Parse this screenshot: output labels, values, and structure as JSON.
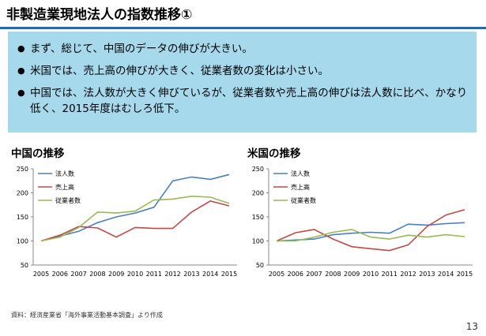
{
  "slide": {
    "title": "非製造業現地法人の指数推移①",
    "page_number": "13",
    "source": "資料：経済産業省「海外事業活動基本調査」より作成"
  },
  "summary": {
    "bullets": [
      "まず、総じて、中国のデータの伸びが大きい。",
      "米国では、売上高の伸びが大きく、従業者数の変化は小さい。",
      "中国では、法人数が大きく伸びているが、従業者数や売上高の伸びは法人数に比べ、かなり低く、2015年度はむしろ低下。"
    ]
  },
  "colors": {
    "title_rule": "#1f6bb3",
    "box_bg": "#a6d9ec",
    "series_1": "#4a7ebb",
    "series_2": "#be4b48",
    "series_3": "#98b954"
  },
  "chart_data": [
    {
      "type": "line",
      "title": "中国の推移",
      "x": [
        "2005",
        "2006",
        "2007",
        "2008",
        "2009",
        "2010",
        "2011",
        "2012",
        "2013",
        "2014",
        "2015"
      ],
      "ylim": [
        50,
        250
      ],
      "yticks": [
        50,
        100,
        150,
        200,
        250
      ],
      "legend_position": "top-left",
      "grid": false,
      "series": [
        {
          "name": "法人数",
          "color": "#4a7ebb",
          "values": [
            100,
            110,
            120,
            138,
            150,
            158,
            170,
            225,
            233,
            228,
            238
          ]
        },
        {
          "name": "売上高",
          "color": "#be4b48",
          "values": [
            100,
            112,
            130,
            127,
            108,
            128,
            126,
            126,
            160,
            183,
            173
          ]
        },
        {
          "name": "従業者数",
          "color": "#98b954",
          "values": [
            100,
            108,
            128,
            160,
            158,
            162,
            185,
            187,
            193,
            191,
            178
          ]
        }
      ]
    },
    {
      "type": "line",
      "title": "米国の推移",
      "x": [
        "2005",
        "2006",
        "2007",
        "2008",
        "2009",
        "2010",
        "2011",
        "2012",
        "2013",
        "2014",
        "2015"
      ],
      "ylim": [
        50,
        250
      ],
      "yticks": [
        50,
        100,
        150,
        200,
        250
      ],
      "legend_position": "top-left",
      "grid": false,
      "series": [
        {
          "name": "法人数",
          "color": "#4a7ebb",
          "values": [
            100,
            102,
            104,
            113,
            116,
            118,
            116,
            135,
            133,
            136,
            138
          ]
        },
        {
          "name": "売上高",
          "color": "#be4b48",
          "values": [
            100,
            117,
            124,
            104,
            88,
            84,
            80,
            92,
            130,
            154,
            165
          ]
        },
        {
          "name": "従業者数",
          "color": "#98b954",
          "values": [
            100,
            100,
            108,
            118,
            124,
            108,
            104,
            112,
            108,
            113,
            109
          ]
        }
      ]
    }
  ]
}
